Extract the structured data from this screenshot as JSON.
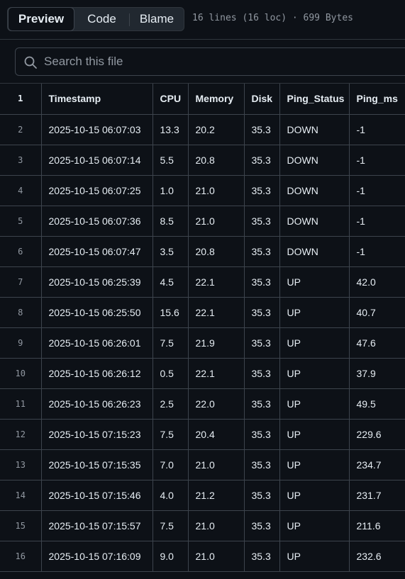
{
  "toolbar": {
    "tabs": [
      {
        "label": "Preview"
      },
      {
        "label": "Code"
      },
      {
        "label": "Blame"
      }
    ],
    "file_info": "16 lines (16 loc) · 699 Bytes"
  },
  "search": {
    "placeholder": "Search this file",
    "icon": "search-icon"
  },
  "table": {
    "line_numbers": [
      "1",
      "2",
      "3",
      "4",
      "5",
      "6",
      "7",
      "8",
      "9",
      "10",
      "11",
      "12",
      "13",
      "14",
      "15",
      "16"
    ],
    "headers": [
      "Timestamp",
      "CPU",
      "Memory",
      "Disk",
      "Ping_Status",
      "Ping_ms"
    ],
    "rows": [
      [
        "2025-10-15 06:07:03",
        "13.3",
        "20.2",
        "35.3",
        "DOWN",
        "-1"
      ],
      [
        "2025-10-15 06:07:14",
        "5.5",
        "20.8",
        "35.3",
        "DOWN",
        "-1"
      ],
      [
        "2025-10-15 06:07:25",
        "1.0",
        "21.0",
        "35.3",
        "DOWN",
        "-1"
      ],
      [
        "2025-10-15 06:07:36",
        "8.5",
        "21.0",
        "35.3",
        "DOWN",
        "-1"
      ],
      [
        "2025-10-15 06:07:47",
        "3.5",
        "20.8",
        "35.3",
        "DOWN",
        "-1"
      ],
      [
        "2025-10-15 06:25:39",
        "4.5",
        "22.1",
        "35.3",
        "UP",
        "42.0"
      ],
      [
        "2025-10-15 06:25:50",
        "15.6",
        "22.1",
        "35.3",
        "UP",
        "40.7"
      ],
      [
        "2025-10-15 06:26:01",
        "7.5",
        "21.9",
        "35.3",
        "UP",
        "47.6"
      ],
      [
        "2025-10-15 06:26:12",
        "0.5",
        "22.1",
        "35.3",
        "UP",
        "37.9"
      ],
      [
        "2025-10-15 06:26:23",
        "2.5",
        "22.0",
        "35.3",
        "UP",
        "49.5"
      ],
      [
        "2025-10-15 07:15:23",
        "7.5",
        "20.4",
        "35.3",
        "UP",
        "229.6"
      ],
      [
        "2025-10-15 07:15:35",
        "7.0",
        "21.0",
        "35.3",
        "UP",
        "234.7"
      ],
      [
        "2025-10-15 07:15:46",
        "4.0",
        "21.2",
        "35.3",
        "UP",
        "231.7"
      ],
      [
        "2025-10-15 07:15:57",
        "7.5",
        "21.0",
        "35.3",
        "UP",
        "211.6"
      ],
      [
        "2025-10-15 07:16:09",
        "9.0",
        "21.0",
        "35.3",
        "UP",
        "232.6"
      ]
    ]
  }
}
